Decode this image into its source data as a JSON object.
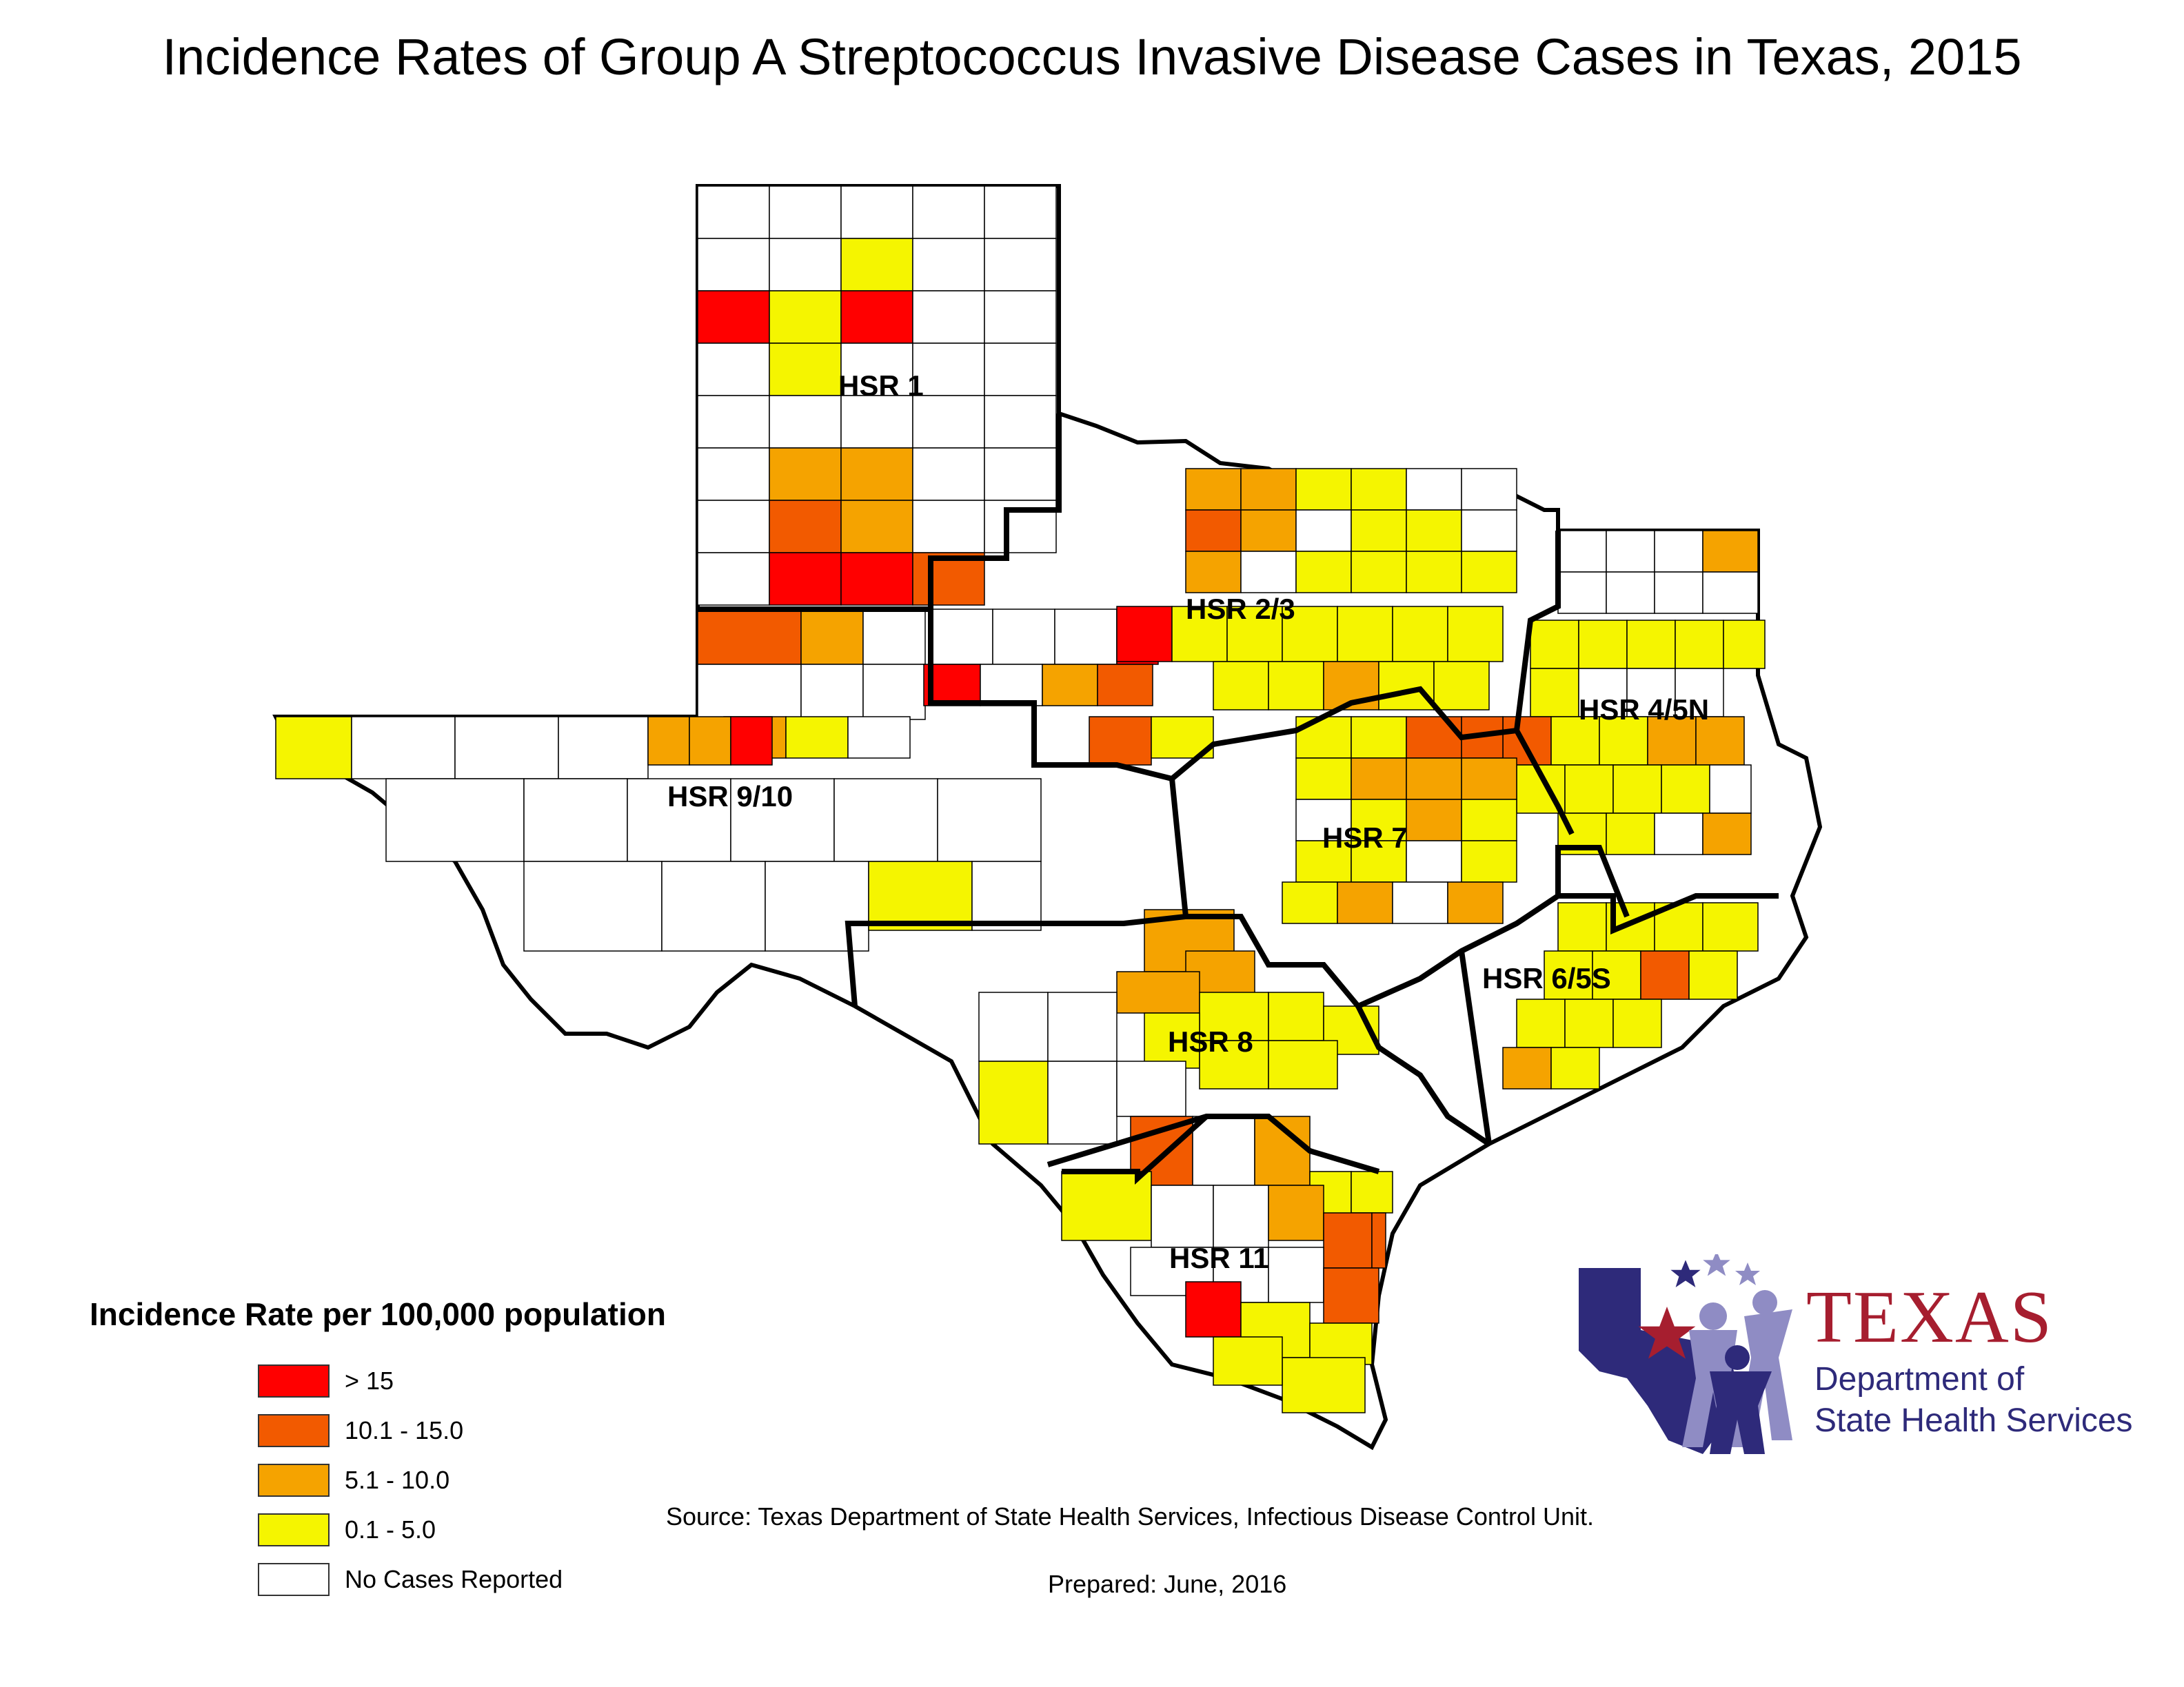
{
  "title": "Incidence Rates  of Group A Streptococcus Invasive Disease Cases in Texas, 2015",
  "regions": [
    {
      "label": "HSR 1",
      "anchor": "panhandle-north"
    },
    {
      "label": "HSR 2/3",
      "anchor": "north-central"
    },
    {
      "label": "HSR 4/5N",
      "anchor": "northeast"
    },
    {
      "label": "HSR 9/10",
      "anchor": "west"
    },
    {
      "label": "HSR 7",
      "anchor": "central"
    },
    {
      "label": "HSR 6/5S",
      "anchor": "southeast"
    },
    {
      "label": "HSR 8",
      "anchor": "south-central"
    },
    {
      "label": "HSR 11",
      "anchor": "south"
    }
  ],
  "legend": {
    "title": "Incidence Rate per 100,000 population",
    "items": [
      {
        "label": "> 15",
        "color": "#ff0000"
      },
      {
        "label": "10.1 - 15.0",
        "color": "#f25a00"
      },
      {
        "label": "5.1 - 10.0",
        "color": "#f5a300"
      },
      {
        "label": "0.1 - 5.0",
        "color": "#f5f500"
      },
      {
        "label": "No Cases Reported",
        "color": "#ffffff"
      }
    ]
  },
  "source": "Source: Texas Department of State Health Services, Infectious Disease Control Unit.",
  "prepared": "Prepared: June, 2016",
  "logo": {
    "word": "TEXAS",
    "line1": "Department of",
    "line2": "State Health Services",
    "colors": {
      "red": "#a61e2f",
      "blue": "#2e2a7a",
      "lavender": "#8f8cc4"
    }
  }
}
